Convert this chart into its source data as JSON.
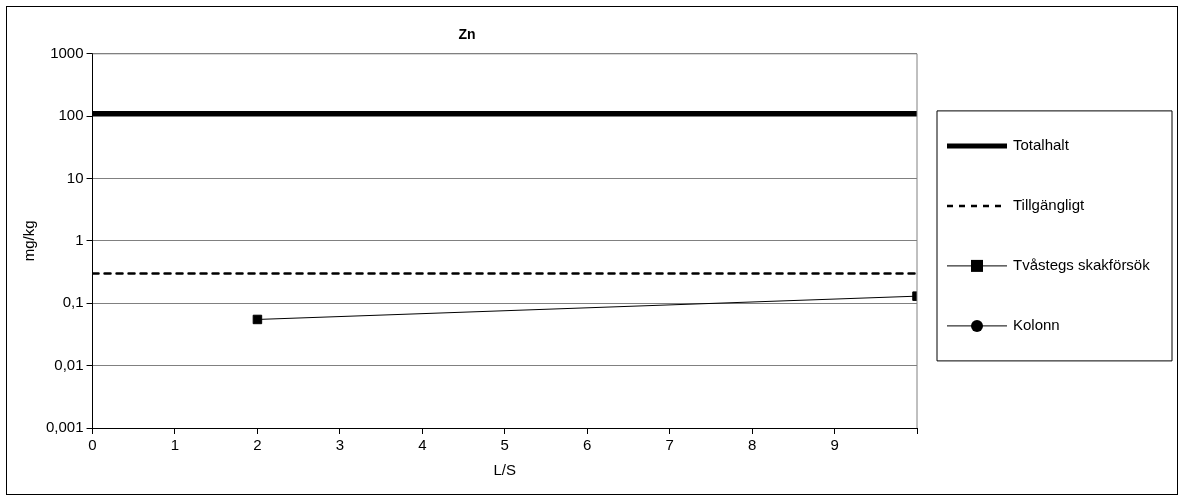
{
  "chart_data": {
    "type": "line",
    "title": "Zn",
    "xlabel": "L/S",
    "ylabel": "mg/kg",
    "log": "y",
    "grid": "y",
    "legend": "right",
    "xlim": [
      0,
      10
    ],
    "xticks": [
      0,
      1,
      2,
      3,
      4,
      5,
      6,
      7,
      8,
      9,
      {
        "value": 10,
        "label": null
      }
    ],
    "ylim": [
      0.001,
      1000
    ],
    "yticks": [
      {
        "value": 0.001,
        "label": "0,001"
      },
      {
        "value": 0.01,
        "label": "0,01"
      },
      {
        "value": 0.1,
        "label": "0,1"
      },
      1,
      10,
      100,
      1000
    ],
    "series": [
      {
        "name": "Totalhalt",
        "color": "#000000",
        "x": [
          0,
          10
        ],
        "values": [
          110,
          110
        ],
        "marker": "none",
        "line_style": "solid"
      },
      {
        "name": "Tillgängligt",
        "color": "#000000",
        "x": [
          0,
          10
        ],
        "values": [
          0.3,
          0.3
        ],
        "marker": "none",
        "line_style": "dashed"
      },
      {
        "name": "Tvåstegs skakförsök",
        "color": "#000000",
        "x": [
          2,
          10
        ],
        "values": [
          0.055,
          0.13
        ],
        "marker": "square",
        "line_style": "solid"
      },
      {
        "name": "Kolonn",
        "color": "#000000",
        "marker": "circle",
        "line_style": "solid"
      }
    ]
  }
}
